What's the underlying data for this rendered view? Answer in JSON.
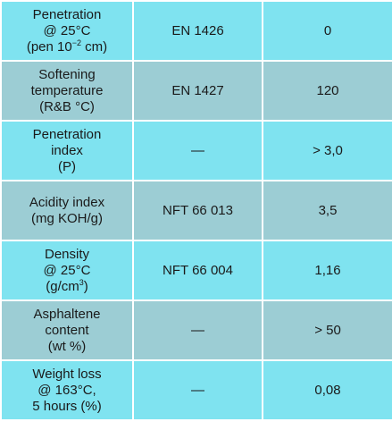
{
  "rows": [
    {
      "property_lines": [
        "Penetration",
        "@ 25°C",
        "(pen 10"
      ],
      "property_sup": "−2",
      "property_tail": " cm)",
      "standard": "EN 1426",
      "value": "0"
    },
    {
      "property_lines": [
        "Softening",
        "temperature",
        "(R&B °C)"
      ],
      "standard": "EN 1427",
      "value": "120"
    },
    {
      "property_lines": [
        "Penetration",
        "index",
        "(P)"
      ],
      "standard": "—",
      "value": "> 3,0"
    },
    {
      "property_lines": [
        "Acidity index",
        "(mg KOH/g)"
      ],
      "standard": "NFT 66 013",
      "value": "3,5"
    },
    {
      "property_lines": [
        "Density",
        "@ 25°C",
        "(g/cm"
      ],
      "property_sup": "3",
      "property_tail": ")",
      "standard": "NFT 66 004",
      "value": "1,16"
    },
    {
      "property_lines": [
        "Asphaltene",
        "content",
        "(wt %)"
      ],
      "standard": "—",
      "value": "> 50"
    },
    {
      "property_lines": [
        "Weight loss",
        "@ 163°C,",
        "5 hours (%)"
      ],
      "standard": "—",
      "value": "0,08"
    }
  ],
  "colors": {
    "row_light": "#7fe3f0",
    "row_dark": "#9ccdd4",
    "border": "#ffffff",
    "text": "#1a1a1a"
  }
}
